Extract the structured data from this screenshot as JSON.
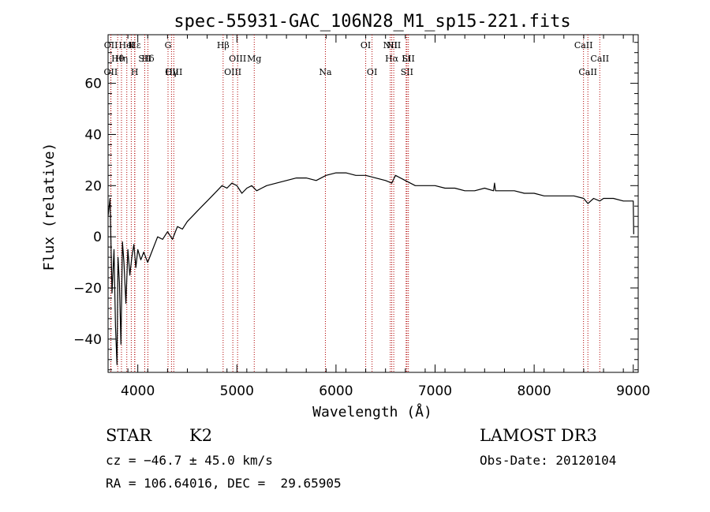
{
  "chart_data": {
    "type": "line",
    "title": "spec-55931-GAC_106N28_M1_sp15-221.fits",
    "xlabel": "Wavelength (Å)",
    "ylabel": "Flux (relative)",
    "xlim": [
      3700,
      9050
    ],
    "ylim": [
      -53,
      79
    ],
    "xticks": [
      4000,
      5000,
      6000,
      7000,
      8000,
      9000
    ],
    "xtick_labels": [
      "4000",
      "5000",
      "6000",
      "7000",
      "8000",
      "9000"
    ],
    "yticks": [
      -40,
      -20,
      0,
      20,
      40,
      60
    ],
    "ytick_labels": [
      "−40",
      "−20",
      "0",
      "20",
      "40",
      "60"
    ],
    "grid": false,
    "series": [
      {
        "name": "flux",
        "x": [
          3700,
          3720,
          3740,
          3760,
          3775,
          3790,
          3800,
          3815,
          3830,
          3845,
          3860,
          3880,
          3900,
          3920,
          3940,
          3960,
          3980,
          4000,
          4030,
          4060,
          4100,
          4150,
          4200,
          4250,
          4300,
          4350,
          4400,
          4450,
          4500,
          4550,
          4600,
          4650,
          4700,
          4750,
          4800,
          4850,
          4900,
          4950,
          5000,
          5050,
          5100,
          5150,
          5200,
          5250,
          5300,
          5400,
          5500,
          5600,
          5700,
          5800,
          5900,
          6000,
          6100,
          6200,
          6300,
          6400,
          6500,
          6563,
          6600,
          6700,
          6800,
          6900,
          7000,
          7100,
          7200,
          7300,
          7400,
          7500,
          7590,
          7600,
          7610,
          7700,
          7800,
          7900,
          8000,
          8100,
          8200,
          8300,
          8400,
          8500,
          8542,
          8600,
          8662,
          8700,
          8800,
          8900,
          8950,
          9000,
          9005
        ],
        "values": [
          8,
          15,
          -22,
          -5,
          -35,
          -50,
          -8,
          -18,
          -42,
          -2,
          -10,
          -26,
          -5,
          -15,
          -8,
          -3,
          -12,
          -5,
          -9,
          -6,
          -10,
          -5,
          0,
          -1,
          2,
          -1,
          4,
          3,
          6,
          8,
          10,
          12,
          14,
          16,
          18,
          20,
          19,
          21,
          20,
          17,
          19,
          20,
          18,
          19,
          20,
          21,
          22,
          23,
          23,
          22,
          24,
          25,
          25,
          24,
          24,
          23,
          22,
          21,
          24,
          22,
          20,
          20,
          20,
          19,
          19,
          18,
          18,
          19,
          18,
          21,
          18,
          18,
          18,
          17,
          17,
          16,
          16,
          16,
          16,
          15,
          13,
          15,
          14,
          15,
          15,
          14,
          14,
          14,
          1
        ]
      }
    ],
    "line_markers": [
      {
        "label": "Hε",
        "x": 3970
      },
      {
        "label": "Hθ",
        "x": 3797
      },
      {
        "label": "OII",
        "x": 3727
      },
      {
        "label": "K",
        "x": 3934
      },
      {
        "label": "Hδ",
        "x": 4102
      },
      {
        "label": "OIII",
        "x": 4363
      },
      {
        "label": "HeI",
        "x": 3889
      },
      {
        "label": "SII",
        "x": 4070
      },
      {
        "label": "Hγ",
        "x": 4340
      },
      {
        "label": "OII",
        "x": 3729
      },
      {
        "label": "Hη",
        "x": 3835
      },
      {
        "label": "H",
        "x": 3968
      },
      {
        "label": "G",
        "x": 4305
      },
      {
        "label": "OIII",
        "x": 5007
      },
      {
        "label": "OIII",
        "x": 4959
      },
      {
        "label": "Hβ",
        "x": 4861
      },
      {
        "label": "Mg",
        "x": 5175
      },
      {
        "label": "Na",
        "x": 5893
      },
      {
        "label": "OI",
        "x": 6300
      },
      {
        "label": "Hα",
        "x": 6563
      },
      {
        "label": "SII",
        "x": 6716
      },
      {
        "label": "NII",
        "x": 6548
      },
      {
        "label": "Li",
        "x": 6708
      },
      {
        "label": "OI",
        "x": 6364
      },
      {
        "label": "NII",
        "x": 6583
      },
      {
        "label": "SII",
        "x": 6731
      },
      {
        "label": "CaII",
        "x": 8542
      },
      {
        "label": "CaII",
        "x": 8498
      },
      {
        "label": "CaII",
        "x": 8662
      }
    ]
  },
  "info": {
    "object_class": "STAR",
    "subclass": "K2",
    "survey": "LAMOST DR3",
    "redshift_text": "cz = −46.7 ± 45.0 km/s",
    "obs_date": "Obs-Date: 20120104",
    "coords": "RA = 106.64016, DEC =  29.65905"
  }
}
